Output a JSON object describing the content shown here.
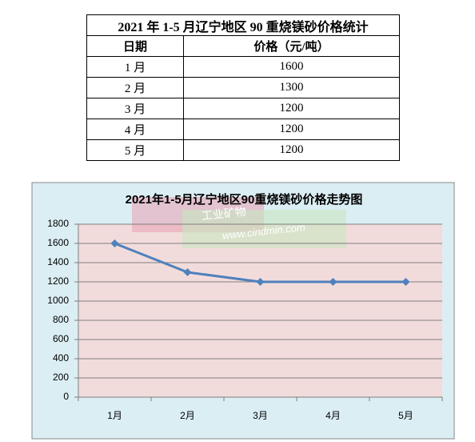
{
  "table": {
    "title": "2021 年 1-5 月辽宁地区 90 重烧镁砂价格统计",
    "headers": [
      "日期",
      "价格（元/吨）"
    ],
    "rows": [
      [
        "1 月",
        "1600"
      ],
      [
        "2 月",
        "1300"
      ],
      [
        "3 月",
        "1200"
      ],
      [
        "4 月",
        "1200"
      ],
      [
        "5 月",
        "1200"
      ]
    ]
  },
  "chart_data": {
    "type": "line",
    "title": "2021年1-5月辽宁地区90重烧镁砂价格走势图",
    "categories": [
      "1月",
      "2月",
      "3月",
      "4月",
      "5月"
    ],
    "series": [
      {
        "name": "价格",
        "color": "#4f81bd",
        "values": [
          1600,
          1300,
          1200,
          1200,
          1200
        ]
      }
    ],
    "ylim": [
      0,
      1800
    ],
    "yticks": [
      0,
      200,
      400,
      600,
      800,
      1000,
      1200,
      1400,
      1600,
      1800
    ],
    "grid": true
  },
  "watermark": {
    "line1": "工业矿物",
    "line2": "www.cindmin.com"
  }
}
